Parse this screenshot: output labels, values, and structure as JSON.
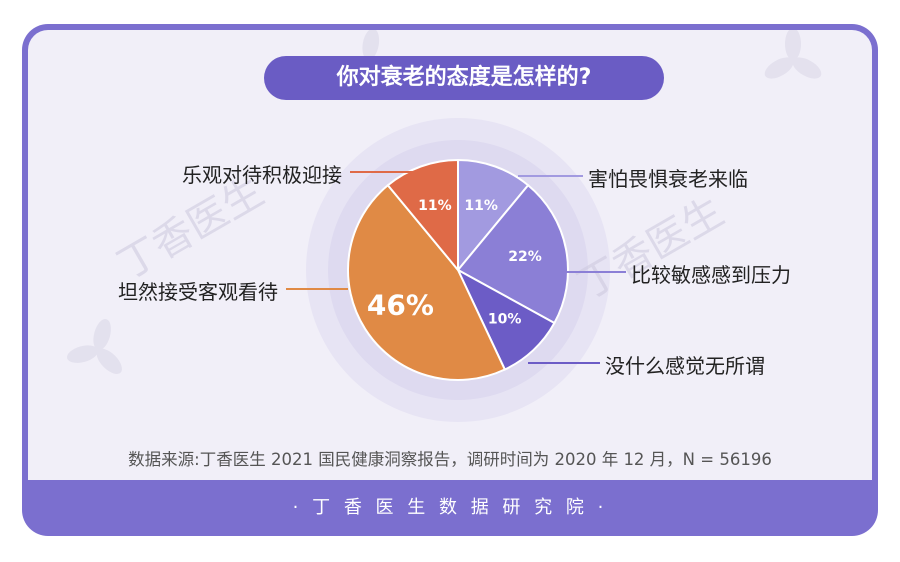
{
  "title": "你对衰老的态度是怎样的?",
  "source_note": "数据来源:丁香医生 2021 国民健康洞察报告，调研时间为 2020 年 12 月，N = 56196",
  "footer_text": "· 丁 香 医 生 数 据 研 究 院 ·",
  "watermark": "丁香医生",
  "colors": {
    "frame": "#7b6fcf",
    "panel": "#f1eff8",
    "title_bg": "#6a5cc4"
  },
  "chart_data": {
    "type": "pie",
    "title": "你对衰老的态度是怎样的?",
    "slices": [
      {
        "label": "害怕畏惧衰老来临",
        "value": 11,
        "display": "11%",
        "color": "#a29ae0"
      },
      {
        "label": "比较敏感感到压力",
        "value": 22,
        "display": "22%",
        "color": "#8b7fd6"
      },
      {
        "label": "没什么感觉无所谓",
        "value": 10,
        "display": "10%",
        "color": "#6c5cc6"
      },
      {
        "label": "坦然接受客观看待",
        "value": 46,
        "display": "46%",
        "color": "#e08a45"
      },
      {
        "label": "乐观对待积极迎接",
        "value": 11,
        "display": "11%",
        "color": "#df6a47"
      }
    ]
  }
}
